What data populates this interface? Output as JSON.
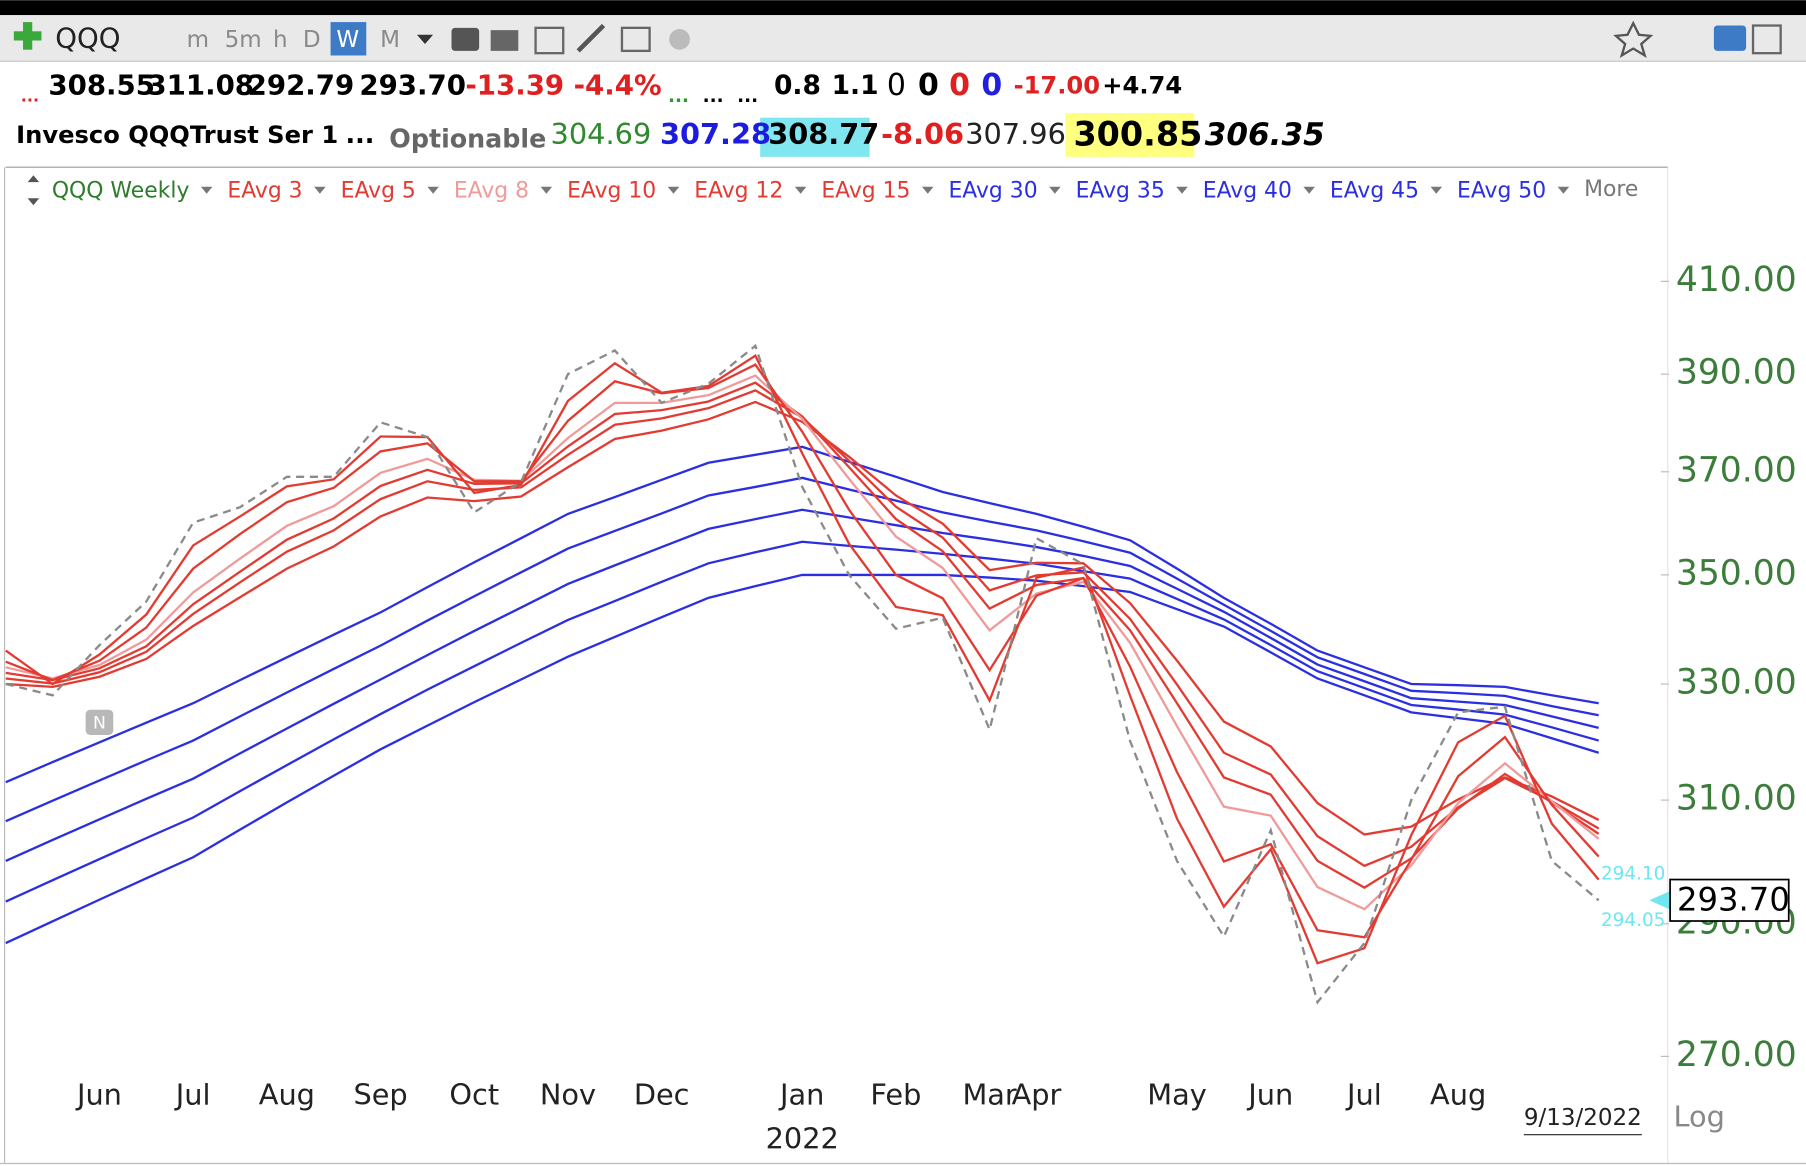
{
  "toolbar": {
    "symbol": "QQQ",
    "intervals": [
      "m",
      "5m",
      "h",
      "D",
      "W",
      "M"
    ]
  },
  "quote": {
    "line1": [
      "...",
      "308.55",
      "311.08",
      "292.79",
      "293.70",
      "-13.39",
      "-4.4%",
      "...",
      "...",
      "...",
      "0.8",
      "1.1",
      "0",
      "0",
      "0",
      "0",
      "-17.00",
      "+4.74"
    ],
    "line2": [
      "Invesco QQQTrust Ser 1",
      "...",
      "Optionable",
      "304.69",
      "307.28",
      "308.77",
      "-8.06",
      "307.96",
      "300.85",
      "306.35"
    ]
  },
  "chart_data": {
    "type": "line",
    "legend_title": "QQQ Weekly",
    "legend_more": "More",
    "log_scale": true,
    "categories": [
      null,
      null,
      "Jun",
      null,
      "Jul",
      null,
      "Aug",
      null,
      "Sep",
      null,
      "Oct",
      null,
      "Nov",
      null,
      "Dec",
      null,
      null,
      "Jan",
      null,
      "Feb",
      null,
      "Mar",
      "Apr",
      null,
      null,
      "May",
      null,
      "Jun",
      null,
      "Jul",
      null,
      "Aug",
      null,
      null,
      null
    ],
    "year_label": "2022",
    "date_label": "9/13/2022",
    "scale_mode": "Log",
    "event_badge": "N",
    "ylim": [
      267,
      424
    ],
    "yticks": [
      {
        "value": 270,
        "label": "270.00"
      },
      {
        "value": 290,
        "label": "290.00"
      },
      {
        "value": 310,
        "label": "310.00"
      },
      {
        "value": 330,
        "label": "330.00"
      },
      {
        "value": 350,
        "label": "350.00"
      },
      {
        "value": 370,
        "label": "370.00"
      },
      {
        "value": 390,
        "label": "390.00"
      },
      {
        "value": 410,
        "label": "410.00"
      }
    ],
    "price_line": {
      "color": "#8a8a8a",
      "dashed": true,
      "values": [
        330,
        328,
        337,
        345,
        360,
        363,
        369,
        369,
        380,
        377,
        362,
        368,
        390,
        395,
        384,
        388,
        396,
        367,
        350,
        340,
        342,
        322,
        357,
        352,
        320,
        300,
        288,
        305,
        278,
        287,
        310,
        325,
        326,
        300,
        293.7
      ]
    },
    "last_price": {
      "value": 293.7,
      "label": "293.70"
    },
    "price_marks": [
      {
        "value": 294.1,
        "label": "294.10"
      },
      {
        "value": 294.05,
        "label": "294.05"
      }
    ],
    "series": [
      {
        "name": "EAvg 3",
        "color": "#e23b32",
        "values": [
          336,
          330,
          335.3,
          342.6,
          355.6,
          361.2,
          367.1,
          368.5,
          377.1,
          377,
          365.8,
          367.4,
          384.4,
          392.3,
          386.1,
          387.5,
          393.9,
          373.7,
          355.9,
          344,
          342.5,
          327.1,
          349.5,
          351.4,
          327.9,
          306.9,
          292.7,
          301.9,
          283.9,
          286.2,
          304.2,
          319.8,
          324.4,
          306.1,
          297
        ]
      },
      {
        "name": "EAvg 5",
        "color": "#e23b32",
        "values": [
          334,
          330.7,
          334.2,
          340.2,
          351.2,
          357.8,
          364,
          366.8,
          374.1,
          375.7,
          368.1,
          368.1,
          380.3,
          388.5,
          386,
          387.1,
          392,
          378.1,
          362.5,
          350,
          345.6,
          332.5,
          346.1,
          349.4,
          333.1,
          314.7,
          299.9,
          302.7,
          289,
          287.9,
          300.2,
          314,
          320.7,
          309.2,
          300.7
        ]
      },
      {
        "name": "EAvg 8",
        "color": "#f09a9a",
        "values": [
          333,
          331,
          333.4,
          338,
          346.7,
          353.1,
          359.4,
          363.2,
          369.8,
          372.6,
          368.4,
          368.2,
          376.8,
          384,
          384,
          385.6,
          389.7,
          380.7,
          368.6,
          357.3,
          351.3,
          339.7,
          346.5,
          348.7,
          337.4,
          322.6,
          308.9,
          307.4,
          295.8,
          292.3,
          299.3,
          309.5,
          316.2,
          309.8,
          303.6
        ]
      },
      {
        "name": "EAvg 10",
        "color": "#e23b32",
        "values": [
          332,
          330.7,
          332.8,
          336.8,
          344.5,
          350.6,
          356.7,
          360.8,
          367.2,
          370.4,
          367.6,
          367.7,
          375.1,
          381.7,
          382.5,
          384.3,
          388.2,
          381.2,
          370.9,
          360.7,
          354.5,
          343.7,
          348.1,
          349.4,
          339.7,
          326.6,
          313.8,
          310.9,
          300,
          295.7,
          300.4,
          308.6,
          314.4,
          309.6,
          304.4
        ]
      },
      {
        "name": "EAvg 12",
        "color": "#e23b32",
        "values": [
          331,
          330.1,
          332.1,
          335.8,
          342.7,
          348.6,
          354.4,
          358.5,
          364.6,
          368.1,
          366.4,
          366.9,
          373.4,
          379.5,
          380.8,
          382.9,
          386.6,
          381,
          372.2,
          363.1,
          357.1,
          347.1,
          349.9,
          350.5,
          341.8,
          329.9,
          318,
          314.3,
          304,
          299.2,
          302.3,
          308.8,
          313.7,
          309.8,
          305.3
        ]
      },
      {
        "name": "EAvg 15",
        "color": "#e23b32",
        "values": [
          330,
          329.5,
          331.3,
          334.5,
          340.5,
          345.8,
          351.2,
          355.4,
          361.2,
          364.9,
          364.2,
          365.1,
          370.9,
          376.6,
          378.3,
          380.6,
          384.2,
          380.1,
          373,
          365.3,
          359.8,
          350.9,
          352.3,
          352.2,
          344.7,
          334.2,
          323.4,
          319.1,
          309.5,
          304.3,
          305.6,
          310.1,
          313.8,
          310.6,
          306.7
        ]
      },
      {
        "name": "EAvg 30",
        "color": "#2b2fe0",
        "values": [
          313,
          316.4,
          319.8,
          323.2,
          326.6,
          330.7,
          334.8,
          338.9,
          343,
          347.7,
          352.4,
          357,
          361.7,
          365,
          368.4,
          371.8,
          373.4,
          375,
          372,
          369,
          366,
          363.8,
          361.7,
          359.2,
          356.6,
          351.2,
          345.7,
          340.9,
          336,
          333,
          330,
          329.8,
          329.5,
          328,
          326.6
        ]
      },
      {
        "name": "EAvg 35",
        "color": "#2b2fe0",
        "values": [
          306.5,
          309.9,
          313.3,
          316.7,
          320.1,
          324.3,
          328.5,
          332.7,
          336.9,
          341.5,
          346,
          350.5,
          355,
          358.4,
          361.8,
          365.3,
          367,
          368.8,
          366.5,
          364.3,
          362,
          360.2,
          358.5,
          356.4,
          354.2,
          349.3,
          344.4,
          339.6,
          334.8,
          331.8,
          328.8,
          328.4,
          327.9,
          326.1,
          324.5
        ]
      },
      {
        "name": "EAvg 40",
        "color": "#2b2fe0",
        "values": [
          300,
          303.4,
          306.8,
          310.2,
          313.6,
          317.9,
          322.2,
          326.5,
          330.8,
          335.2,
          339.6,
          343.9,
          348.3,
          351.8,
          355.3,
          358.8,
          360.7,
          362.5,
          361,
          359.5,
          358,
          356.7,
          355.3,
          353.6,
          351.7,
          347.4,
          343.1,
          338.3,
          333.5,
          330.5,
          327.5,
          326.9,
          326.3,
          324.3,
          322.3
        ]
      },
      {
        "name": "EAvg 45",
        "color": "#2b2fe0",
        "values": [
          293.5,
          296.9,
          300.3,
          303.7,
          307.1,
          311.5,
          315.9,
          320.3,
          324.7,
          329,
          333.2,
          337.4,
          341.6,
          345.1,
          348.7,
          352.2,
          354.3,
          356.3,
          355.5,
          354.8,
          354,
          353.1,
          352.1,
          350.7,
          349.3,
          345.5,
          341.7,
          337,
          332.3,
          329.3,
          326.3,
          325.5,
          324.6,
          322.4,
          320.1
        ]
      },
      {
        "name": "EAvg 50",
        "color": "#2b2fe0",
        "values": [
          287,
          290.4,
          293.8,
          297.2,
          300.6,
          305.1,
          309.6,
          314.1,
          318.6,
          322.7,
          326.8,
          330.8,
          334.9,
          338.5,
          342.1,
          345.7,
          347.9,
          350,
          350,
          350,
          350,
          349.5,
          348.9,
          347.9,
          346.8,
          343.6,
          340.4,
          335.7,
          331,
          328,
          325,
          324,
          323,
          320.5,
          318
        ]
      }
    ]
  }
}
